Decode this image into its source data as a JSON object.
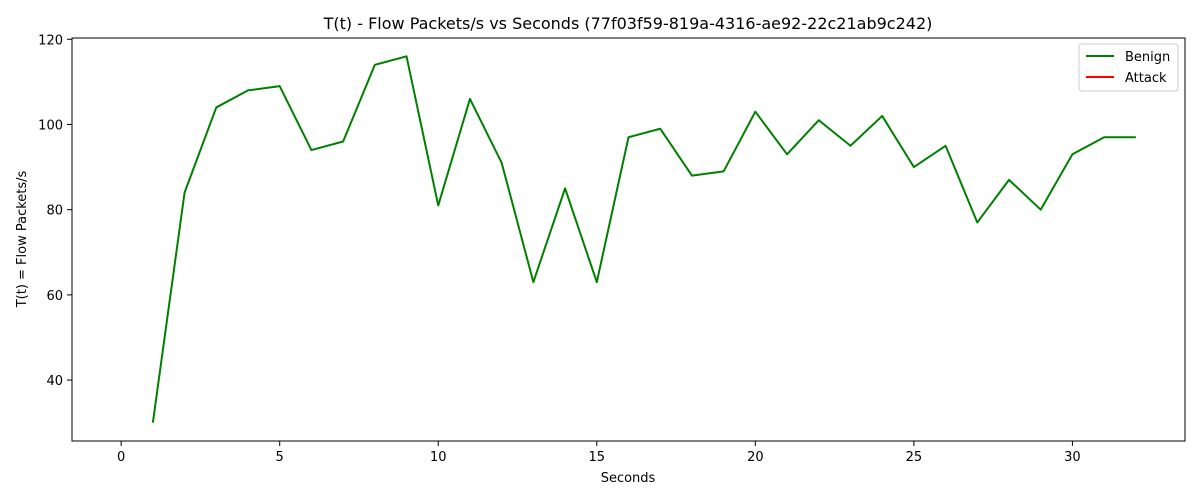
{
  "chart_data": {
    "type": "line",
    "title": "T(t) - Flow Packets/s vs Seconds (77f03f59-819a-4316-ae92-22c21ab9c242)",
    "xlabel": "Seconds",
    "ylabel": "T(t) = Flow Packets/s",
    "xlim": [
      -1.55,
      33.55
    ],
    "ylim": [
      25.7,
      120.3
    ],
    "xticks": [
      0,
      5,
      10,
      15,
      20,
      25,
      30
    ],
    "yticks": [
      40,
      60,
      80,
      100,
      120
    ],
    "legend_position": "top-right",
    "series": [
      {
        "name": "Benign",
        "color": "#008000",
        "x": [
          1,
          2,
          3,
          4,
          5,
          6,
          7,
          8,
          9,
          10,
          11,
          12,
          13,
          14,
          15,
          16,
          17,
          18,
          19,
          20,
          21,
          22,
          23,
          24,
          25,
          26,
          27,
          28,
          29,
          30,
          31,
          32
        ],
        "y": [
          30,
          84,
          104,
          108,
          109,
          94,
          96,
          114,
          116,
          81,
          106,
          91,
          63,
          85,
          63,
          97,
          99,
          88,
          89,
          103,
          93,
          101,
          95,
          102,
          90,
          95,
          77,
          87,
          80,
          93,
          97,
          97
        ]
      },
      {
        "name": "Attack",
        "color": "#ff0000",
        "x": [],
        "y": []
      }
    ]
  }
}
